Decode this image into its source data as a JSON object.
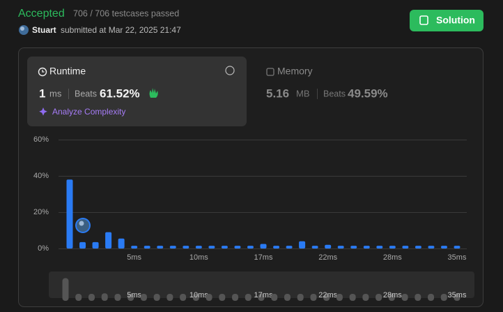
{
  "header": {
    "status": "Accepted",
    "testcases": "706 / 706 testcases passed",
    "user": "Stuart",
    "submitted": "submitted at Mar 22, 2025 21:47",
    "button": "Solution"
  },
  "runtime": {
    "title": "Runtime",
    "value": "1",
    "unit": "ms",
    "beats_label": "Beats",
    "beats": "61.52%",
    "analyze": "Analyze Complexity"
  },
  "memory": {
    "title": "Memory",
    "value": "5.16",
    "unit": "MB",
    "beats_label": "Beats",
    "beats": "49.59%"
  },
  "chart_data": {
    "type": "bar",
    "categories": [
      null,
      null,
      null,
      null,
      null,
      "5ms",
      null,
      null,
      null,
      null,
      "10ms",
      null,
      null,
      null,
      null,
      "17ms",
      null,
      null,
      null,
      null,
      "22ms",
      null,
      null,
      null,
      null,
      "28ms",
      null,
      null,
      null,
      null,
      "35ms"
    ],
    "values": [
      38,
      3.5,
      3.5,
      9,
      5.5,
      1.5,
      1.5,
      1.5,
      1.5,
      1.5,
      1.5,
      1.5,
      1.5,
      1.5,
      1.5,
      2.5,
      1.5,
      1.5,
      4,
      1.5,
      2,
      1.5,
      1.5,
      1.5,
      1.5,
      1.5,
      1.5,
      1.5,
      1.5,
      1.5,
      1.5
    ],
    "color": "#2a7bf4",
    "ylim": [
      0,
      60
    ],
    "yticks": [
      {
        "value": 0,
        "label": "0%"
      },
      {
        "value": 20,
        "label": "20%"
      },
      {
        "value": 40,
        "label": "40%"
      },
      {
        "value": 60,
        "label": "60%"
      }
    ],
    "grid": true
  }
}
